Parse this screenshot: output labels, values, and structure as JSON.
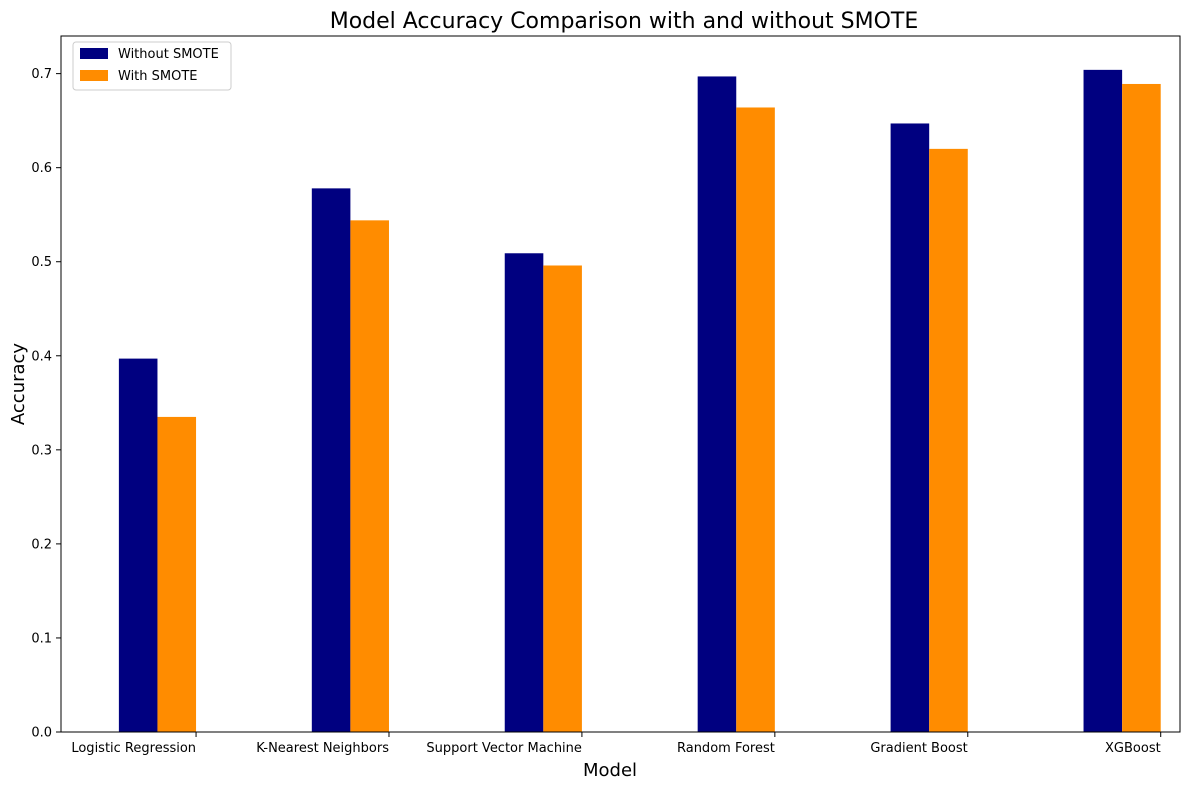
{
  "chart_data": {
    "type": "bar",
    "title": "Model Accuracy Comparison with and without SMOTE",
    "xlabel": "Model",
    "ylabel": "Accuracy",
    "categories": [
      "Logistic Regression",
      "K-Nearest Neighbors",
      "Support Vector Machine",
      "Random Forest",
      "Gradient Boost",
      "XGBoost"
    ],
    "series": [
      {
        "name": "Without SMOTE",
        "color": "#000080",
        "values": [
          0.397,
          0.578,
          0.509,
          0.697,
          0.647,
          0.704
        ]
      },
      {
        "name": "With SMOTE",
        "color": "#ff8c00",
        "values": [
          0.335,
          0.544,
          0.496,
          0.664,
          0.62,
          0.689
        ]
      }
    ],
    "ylim": [
      0,
      0.74
    ],
    "yticks": [
      0.0,
      0.1,
      0.2,
      0.3,
      0.4,
      0.5,
      0.6,
      0.7
    ],
    "ytick_labels": [
      "0.0",
      "0.1",
      "0.2",
      "0.3",
      "0.4",
      "0.5",
      "0.6",
      "0.7"
    ],
    "grid": false,
    "legend": "top-left"
  }
}
